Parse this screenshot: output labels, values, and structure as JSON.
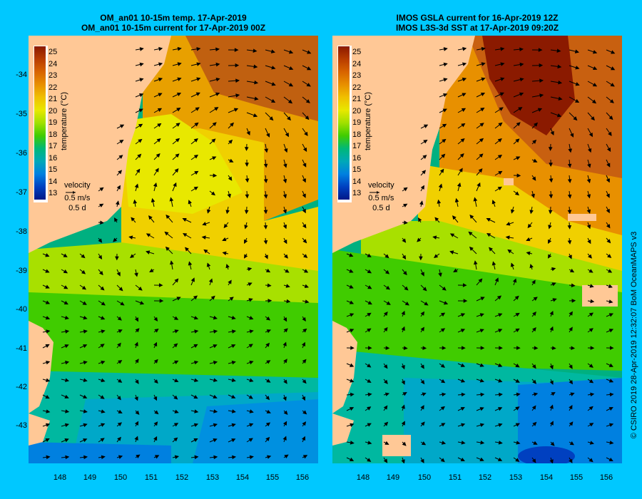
{
  "left_panel": {
    "title_line1": "OM_an01 10-15m temp. 17-Apr-2019",
    "title_line2": "OM_an01 10-15m current for 17-Apr-2019 00Z"
  },
  "right_panel": {
    "title_line1": "IMOS GSLA current for 16-Apr-2019 12Z",
    "title_line2": "IMOS L3S-3d SST at 17-Apr-2019 09:20Z"
  },
  "colorbar": {
    "label": "temperature (°C)",
    "ticks": [
      "25",
      "24",
      "23",
      "22",
      "21",
      "20",
      "19",
      "18",
      "17",
      "16",
      "15",
      "14",
      "13"
    ],
    "colors": [
      "#8b1a00",
      "#b83c00",
      "#d86400",
      "#e89000",
      "#f0c000",
      "#e8e800",
      "#a0e000",
      "#40cc00",
      "#00b878",
      "#00a8b8",
      "#0080e0",
      "#0040c0",
      "#001888"
    ]
  },
  "velocity_legend": {
    "title": "velocity",
    "speed": "0.5 m/s",
    "time": "0.5 d"
  },
  "y_axis_labels": [
    "-34",
    "-35",
    "-36",
    "-37",
    "-38",
    "-39",
    "-40",
    "-41",
    "-42",
    "-43"
  ],
  "x_axis_labels": [
    "148",
    "149",
    "150",
    "151",
    "152",
    "153",
    "154",
    "155",
    "156"
  ],
  "credit": "© CSIRO 2019   28-Apr-2019 12:32:07 BoM OceanMAPS v3",
  "colors": {
    "background": "#00c8ff",
    "land": "#ffc896"
  }
}
